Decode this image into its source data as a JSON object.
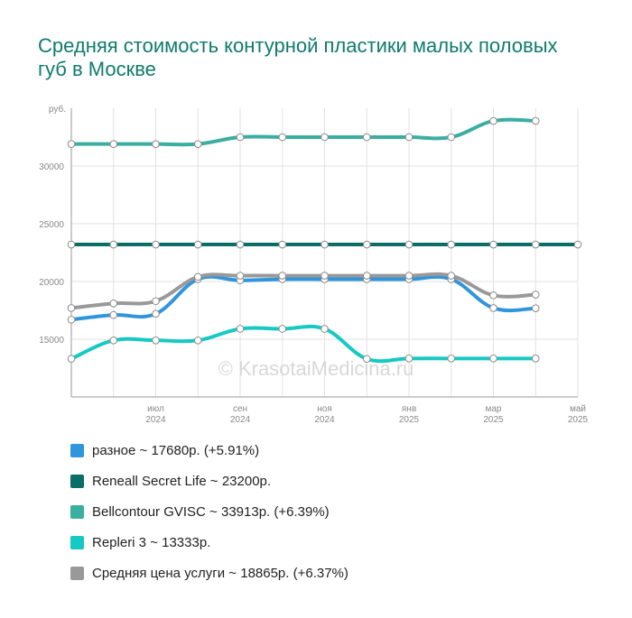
{
  "title": "Средняя стоимость контурной пластики малых половых губ в Москве",
  "watermark": "© KrasotaiMedicina.ru",
  "chart_data": {
    "type": "line",
    "y_unit": "руб.",
    "ylim": [
      10000,
      35000
    ],
    "y_ticks": [
      15000,
      20000,
      25000,
      30000
    ],
    "grid": true,
    "legend_position": "bottom",
    "x": [
      "2024-05",
      "2024-06",
      "2024-07",
      "2024-08",
      "2024-09",
      "2024-10",
      "2024-11",
      "2024-12",
      "2025-01",
      "2025-02",
      "2025-03",
      "2025-04",
      "2025-05"
    ],
    "x_tick_labels": [
      {
        "x": "2024-07",
        "month": "июл",
        "year": "2024"
      },
      {
        "x": "2024-09",
        "month": "сен",
        "year": "2024"
      },
      {
        "x": "2024-11",
        "month": "ноя",
        "year": "2024"
      },
      {
        "x": "2025-01",
        "month": "янв",
        "year": "2025"
      },
      {
        "x": "2025-03",
        "month": "мар",
        "year": "2025"
      },
      {
        "x": "2025-05",
        "month": "май",
        "year": "2025"
      }
    ],
    "series": [
      {
        "name": "разное",
        "color": "#2f95dd",
        "values": [
          16700,
          17100,
          17200,
          20200,
          20100,
          20200,
          20200,
          20200,
          20200,
          20200,
          17700,
          17680,
          null
        ],
        "legend": "разное ~ 17680р. (+5.91%)"
      },
      {
        "name": "Reneall Secret Life",
        "color": "#0b6e66",
        "values": [
          23200,
          23200,
          23200,
          23200,
          23200,
          23200,
          23200,
          23200,
          23200,
          23200,
          23200,
          23200,
          23200
        ],
        "legend": "Reneall Secret Life ~ 23200р."
      },
      {
        "name": "Bellcontour GVISC",
        "color": "#3aaea1",
        "values": [
          31900,
          31900,
          31900,
          31900,
          32500,
          32500,
          32500,
          32500,
          32500,
          32500,
          33900,
          33913,
          null
        ],
        "legend": "Bellcontour GVISC ~ 33913р. (+6.39%)"
      },
      {
        "name": "Repleri 3",
        "color": "#17c9c3",
        "values": [
          13300,
          14900,
          14900,
          14900,
          15900,
          15900,
          15900,
          13300,
          13333,
          13333,
          13333,
          13333,
          null
        ],
        "legend": "Repleri 3 ~ 13333р."
      },
      {
        "name": "Средняя цена услуги",
        "color": "#999999",
        "values": [
          17700,
          18100,
          18300,
          20400,
          20500,
          20500,
          20500,
          20500,
          20500,
          20500,
          18800,
          18865,
          null
        ],
        "legend": "Средняя цена услуги ~ 18865р. (+6.37%)"
      }
    ]
  }
}
